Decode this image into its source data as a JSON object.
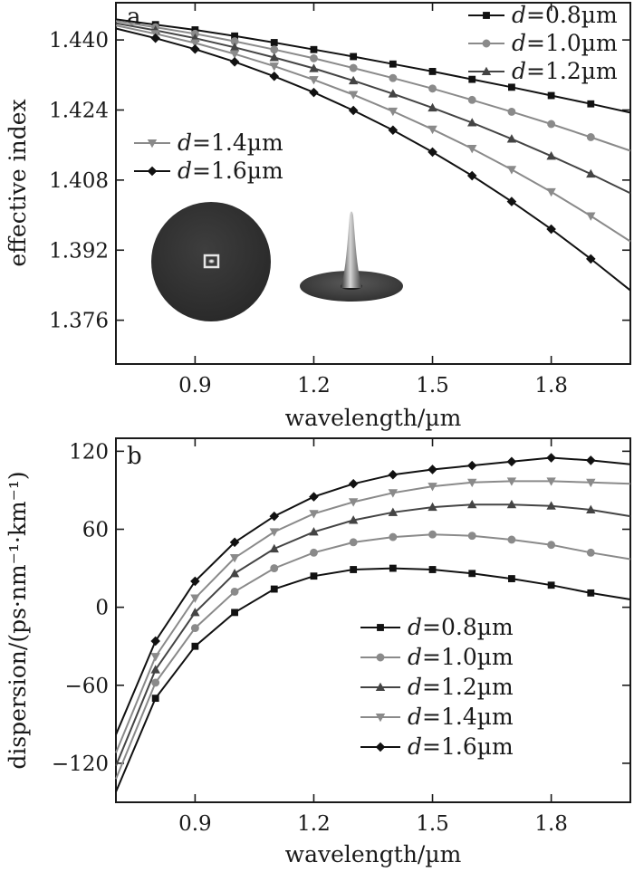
{
  "chart_data": [
    {
      "panel_label": "a",
      "type": "line",
      "xlabel": "wavelength/µm",
      "ylabel": "effective index",
      "xlim": [
        0.7,
        2.0
      ],
      "ylim": [
        1.366,
        1.4485
      ],
      "xticks": [
        0.9,
        1.2,
        1.5,
        1.8
      ],
      "xtick_labels": [
        "0.9",
        "1.2",
        "1.5",
        "1.8"
      ],
      "yticks": [
        1.376,
        1.392,
        1.408,
        1.424,
        1.44
      ],
      "ytick_labels": [
        "1.376",
        "1.392",
        "1.408",
        "1.424",
        "1.440"
      ],
      "legend_groups": [
        {
          "placement": "top-right",
          "series": [
            0,
            1,
            2
          ]
        },
        {
          "placement": "middle-left",
          "series": [
            3,
            4
          ]
        }
      ],
      "x": [
        0.7,
        0.8,
        0.9,
        1.0,
        1.1,
        1.2,
        1.3,
        1.4,
        1.5,
        1.6,
        1.7,
        1.8,
        1.9,
        2.0
      ],
      "series": [
        {
          "name": "d=0.8µm",
          "marker": "square",
          "color": "#111111",
          "values": [
            1.4447,
            1.4435,
            1.4423,
            1.4409,
            1.4394,
            1.4378,
            1.4362,
            1.4345,
            1.4328,
            1.431,
            1.4292,
            1.4273,
            1.4254,
            1.4234
          ]
        },
        {
          "name": "d=1.0µm",
          "marker": "circle",
          "color": "#8a8a8a",
          "values": [
            1.4443,
            1.4429,
            1.4414,
            1.4397,
            1.4378,
            1.4358,
            1.4336,
            1.4313,
            1.4289,
            1.4263,
            1.4236,
            1.4208,
            1.4178,
            1.4147
          ]
        },
        {
          "name": "d=1.2µm",
          "marker": "triangle-up",
          "color": "#444444",
          "values": [
            1.4438,
            1.4422,
            1.4404,
            1.4383,
            1.436,
            1.4335,
            1.4307,
            1.4277,
            1.4245,
            1.4211,
            1.4174,
            1.4135,
            1.4094,
            1.405
          ]
        },
        {
          "name": "d=1.4µm",
          "marker": "triangle-down",
          "color": "#8a8a8a",
          "values": [
            1.4433,
            1.4414,
            1.4393,
            1.4368,
            1.434,
            1.4309,
            1.4275,
            1.4237,
            1.4196,
            1.4152,
            1.4104,
            1.4053,
            1.3998,
            1.394
          ]
        },
        {
          "name": "d=1.6µm",
          "marker": "diamond",
          "color": "#111111",
          "values": [
            1.4426,
            1.4404,
            1.4379,
            1.435,
            1.4317,
            1.428,
            1.4239,
            1.4194,
            1.4144,
            1.409,
            1.4031,
            1.3968,
            1.39,
            1.3828
          ]
        }
      ],
      "insets": [
        "mode-cross-section",
        "mode-intensity-3d"
      ]
    },
    {
      "panel_label": "b",
      "type": "line",
      "xlabel": "wavelength/µm",
      "ylabel": "dispersion/(ps·nm⁻¹·km⁻¹)",
      "xlim": [
        0.7,
        2.0
      ],
      "ylim": [
        -150,
        130
      ],
      "xticks": [
        0.9,
        1.2,
        1.5,
        1.8
      ],
      "xtick_labels": [
        "0.9",
        "1.2",
        "1.5",
        "1.8"
      ],
      "yticks": [
        -120,
        -60,
        0,
        60,
        120
      ],
      "ytick_labels": [
        "−120",
        "−60",
        "0",
        "60",
        "120"
      ],
      "legend_groups": [
        {
          "placement": "lower-right",
          "series": [
            0,
            1,
            2,
            3,
            4
          ]
        }
      ],
      "x": [
        0.7,
        0.8,
        0.9,
        1.0,
        1.1,
        1.2,
        1.3,
        1.4,
        1.5,
        1.6,
        1.7,
        1.8,
        1.9,
        2.0
      ],
      "series": [
        {
          "name": "d=0.8µm",
          "marker": "square",
          "color": "#111111",
          "values": [
            -142,
            -70,
            -30,
            -4,
            14,
            24,
            29,
            30,
            29,
            26,
            22,
            17,
            11,
            6
          ]
        },
        {
          "name": "d=1.0µm",
          "marker": "circle",
          "color": "#8a8a8a",
          "values": [
            -132,
            -58,
            -16,
            12,
            30,
            42,
            50,
            54,
            56,
            55,
            52,
            48,
            42,
            37
          ]
        },
        {
          "name": "d=1.2µm",
          "marker": "triangle-up",
          "color": "#444444",
          "values": [
            -122,
            -48,
            -4,
            26,
            45,
            58,
            67,
            73,
            77,
            79,
            79,
            78,
            75,
            70
          ]
        },
        {
          "name": "d=1.4µm",
          "marker": "triangle-down",
          "color": "#8a8a8a",
          "values": [
            -112,
            -38,
            7,
            38,
            58,
            72,
            81,
            88,
            93,
            96,
            97,
            97,
            96,
            95
          ]
        },
        {
          "name": "d=1.6µm",
          "marker": "diamond",
          "color": "#111111",
          "values": [
            -98,
            -26,
            20,
            50,
            70,
            85,
            95,
            102,
            106,
            109,
            112,
            115,
            113,
            110
          ]
        }
      ]
    }
  ]
}
